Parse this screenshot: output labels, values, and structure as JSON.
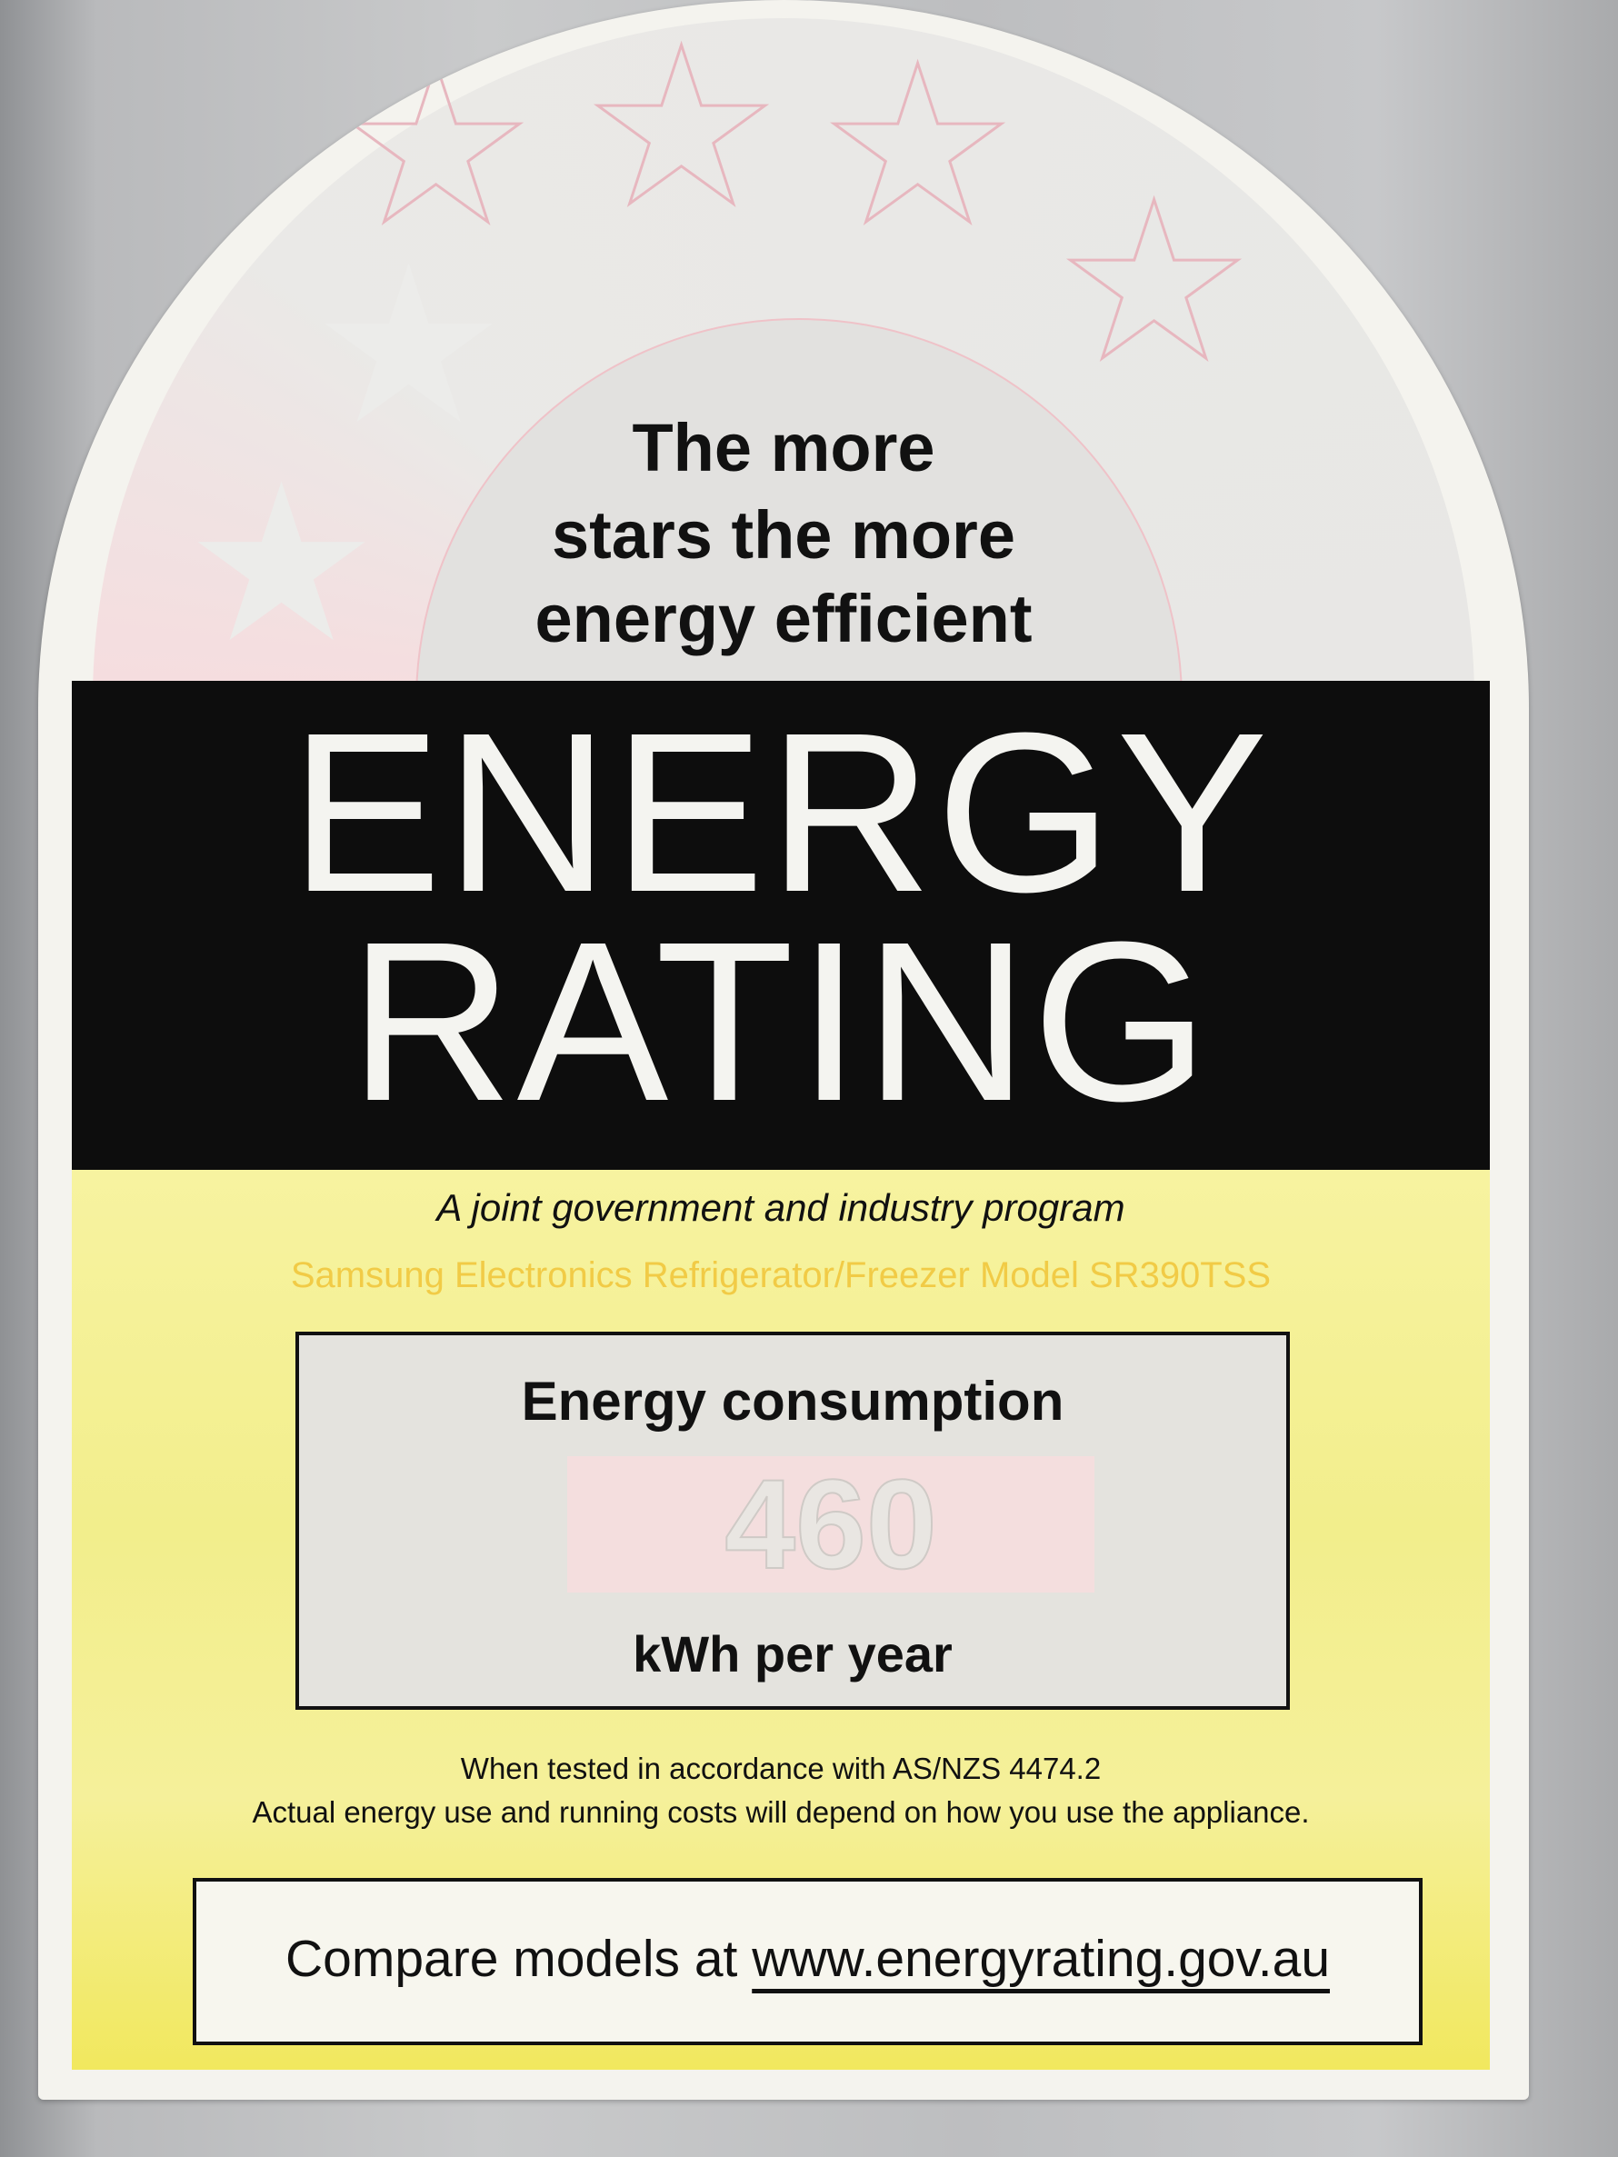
{
  "label": {
    "headline": [
      "The more",
      "stars the more",
      "energy efficient"
    ],
    "title": [
      "ENERGY",
      "RATING"
    ],
    "subtitle": "A joint government and industry program",
    "model": "Samsung Electronics Refrigerator/Freezer Model SR390TSS",
    "consumption": {
      "heading": "Energy consumption",
      "value": "460",
      "unit": "kWh per year"
    },
    "note_1": "When tested in accordance with AS/NZS 4474.2",
    "note_2": "Actual energy use and running costs will depend on how you use the appliance.",
    "compare_prefix": "Compare models at",
    "compare_url": "www.energyrating.gov.au"
  },
  "colors": {
    "band": "#0d0d0d",
    "yellow": "#f2ee8c",
    "model_text": "#f1c232",
    "stars": "#e7b7bf"
  }
}
